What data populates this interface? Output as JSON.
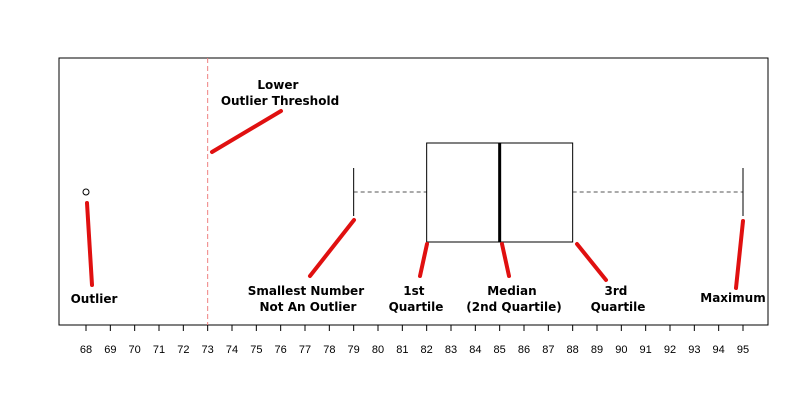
{
  "chart_data": {
    "type": "boxplot",
    "orientation": "horizontal",
    "title": "",
    "xlabel": "",
    "ylabel": "",
    "xlim": [
      68,
      95
    ],
    "x_ticks": [
      68,
      69,
      70,
      71,
      72,
      73,
      74,
      75,
      76,
      77,
      78,
      79,
      80,
      81,
      82,
      83,
      84,
      85,
      86,
      87,
      88,
      89,
      90,
      91,
      92,
      93,
      94,
      95
    ],
    "x_tick_labels": [
      "68",
      "69",
      "70",
      "71",
      "72",
      "73",
      "74",
      "75",
      "76",
      "77",
      "78",
      "79",
      "80",
      "81",
      "82",
      "83",
      "84",
      "85",
      "86",
      "87",
      "88",
      "89",
      "90",
      "91",
      "92",
      "93",
      "94",
      "95"
    ],
    "box": {
      "whisker_low": 79,
      "q1": 82,
      "median": 85,
      "q3": 88,
      "whisker_high": 95
    },
    "outliers": [
      68
    ],
    "lower_outlier_threshold": 73,
    "annotations": [
      {
        "id": "outlier",
        "lines": [
          "Outlier"
        ],
        "target": 68
      },
      {
        "id": "threshold",
        "lines": [
          "Lower",
          "Outlier Threshold"
        ],
        "target": 73
      },
      {
        "id": "smallest",
        "lines": [
          "Smallest Number",
          "Not An Outlier"
        ],
        "target": 79
      },
      {
        "id": "q1",
        "lines": [
          "1st",
          "Quartile"
        ],
        "target": 82
      },
      {
        "id": "median",
        "lines": [
          "Median",
          "(2nd Quartile)"
        ],
        "target": 85
      },
      {
        "id": "q3",
        "lines": [
          "3rd",
          "Quartile"
        ],
        "target": 88
      },
      {
        "id": "maximum",
        "lines": [
          "Maximum"
        ],
        "target": 95
      }
    ],
    "colors": {
      "box": "#000000",
      "whisker": "#555555",
      "threshold": "#f08080",
      "pointer": "#e01010"
    }
  }
}
